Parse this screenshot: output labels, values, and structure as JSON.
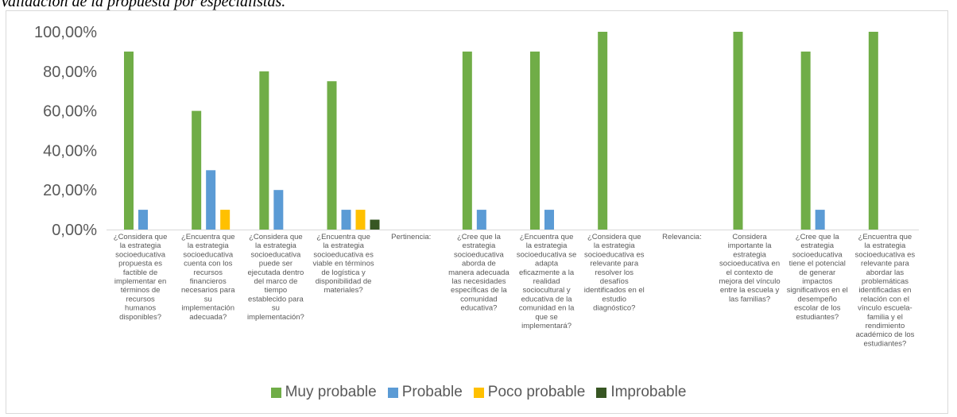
{
  "caption": "Validación de la propuesta por especialistas.",
  "chart_data": {
    "type": "bar",
    "ylim": [
      0,
      100
    ],
    "yticks": [
      "0,00%",
      "20,00%",
      "40,00%",
      "60,00%",
      "80,00%",
      "100,00%"
    ],
    "grid": false,
    "legend_position": "bottom",
    "categories": [
      "¿Considera que la estrategia socioeducativa propuesta es factible de implementar en términos de recursos humanos disponibles?",
      "¿Encuentra que la estrategia socioeducativa cuenta con los recursos financieros necesarios para su implementación adecuada?",
      "¿Considera que la estrategia socioeducativa puede ser ejecutada dentro del marco de tiempo establecido para su implementación?",
      "¿Encuentra que la estrategia socioeducativa es viable en términos de logística y disponibilidad de materiales?",
      "Pertinencia:",
      "¿Cree que la estrategia socioeducativa aborda de manera adecuada las necesidades específicas de la comunidad educativa?",
      "¿Encuentra que la estrategia socioeducativa se adapta eficazmente a la realidad sociocultural y educativa de la comunidad en la que se implementará?",
      "¿Considera que la estrategia socioeducativa es relevante para resolver los desafíos identificados en el estudio diagnóstico?",
      "Relevancia:",
      "Considera importante la estrategia socioeducativa en el contexto de mejora del vínculo entre la escuela y las familias?",
      "¿Cree que la estrategia socioeducativa tiene el potencial de generar impactos significativos en el desempeño escolar de los estudiantes?",
      "¿Encuentra que la estrategia socioeducativa es relevante para abordar las problemáticas identificadas en relación con el vínculo escuela-familia y el rendimiento académico de los estudiantes?"
    ],
    "category_lines": [
      [
        "¿Considera que",
        "la estrategia",
        "socioeducativa",
        "propuesta es",
        "factible de",
        "implementar en",
        "términos de",
        "recursos",
        "humanos",
        "disponibles?"
      ],
      [
        "¿Encuentra que",
        "la estrategia",
        "socioeducativa",
        "cuenta con los",
        "recursos",
        "financieros",
        "necesarios para",
        "su",
        "implementación",
        "adecuada?"
      ],
      [
        "¿Considera que",
        "la estrategia",
        "socioeducativa",
        "puede ser",
        "ejecutada dentro",
        "del marco de",
        "tiempo",
        "establecido para",
        "su",
        "implementación?"
      ],
      [
        "¿Encuentra que",
        "la estrategia",
        "socioeducativa es",
        "viable en términos",
        "de logística y",
        "disponibilidad de",
        "materiales?"
      ],
      [
        "Pertinencia:"
      ],
      [
        "¿Cree que la",
        "estrategia",
        "socioeducativa",
        "aborda de",
        "manera adecuada",
        "las necesidades",
        "específicas de la",
        "comunidad",
        "educativa?"
      ],
      [
        "¿Encuentra que",
        "la estrategia",
        "socioeducativa se",
        "adapta",
        "eficazmente a la",
        "realidad",
        "sociocultural y",
        "educativa de la",
        "comunidad en la",
        "que se",
        "implementará?"
      ],
      [
        "¿Considera que",
        "la estrategia",
        "socioeducativa es",
        "relevante para",
        "resolver los",
        "desafíos",
        "identificados en el",
        "estudio",
        "diagnóstico?"
      ],
      [
        "Relevancia:"
      ],
      [
        "Considera",
        "importante la",
        "estrategia",
        "socioeducativa en",
        "el contexto de",
        "mejora del vínculo",
        "entre la escuela y",
        "las familias?"
      ],
      [
        "¿Cree que la",
        "estrategia",
        "socioeducativa",
        "tiene el potencial",
        "de generar",
        "impactos",
        "significativos en el",
        "desempeño",
        "escolar de los",
        "estudiantes?"
      ],
      [
        "¿Encuentra que",
        "la estrategia",
        "socioeducativa es",
        "relevante para",
        "abordar las",
        "problemáticas",
        "identificadas en",
        "relación con el",
        "vínculo escuela-",
        "familia y el",
        "rendimiento",
        "académico de los",
        "estudiantes?"
      ]
    ],
    "series": [
      {
        "name": "Muy probable",
        "color": "#70ad47",
        "values": [
          90,
          60,
          80,
          75,
          0,
          90,
          90,
          100,
          0,
          100,
          90,
          100
        ]
      },
      {
        "name": "Probable",
        "color": "#5b9bd5",
        "values": [
          10,
          30,
          20,
          10,
          0,
          10,
          10,
          0,
          0,
          0,
          10,
          0
        ]
      },
      {
        "name": "Poco probable",
        "color": "#ffc000",
        "values": [
          0,
          10,
          0,
          10,
          0,
          0,
          0,
          0,
          0,
          0,
          0,
          0
        ]
      },
      {
        "name": "Improbable",
        "color": "#375623",
        "values": [
          0,
          0,
          0,
          5,
          0,
          0,
          0,
          0,
          0,
          0,
          0,
          0
        ]
      }
    ]
  }
}
